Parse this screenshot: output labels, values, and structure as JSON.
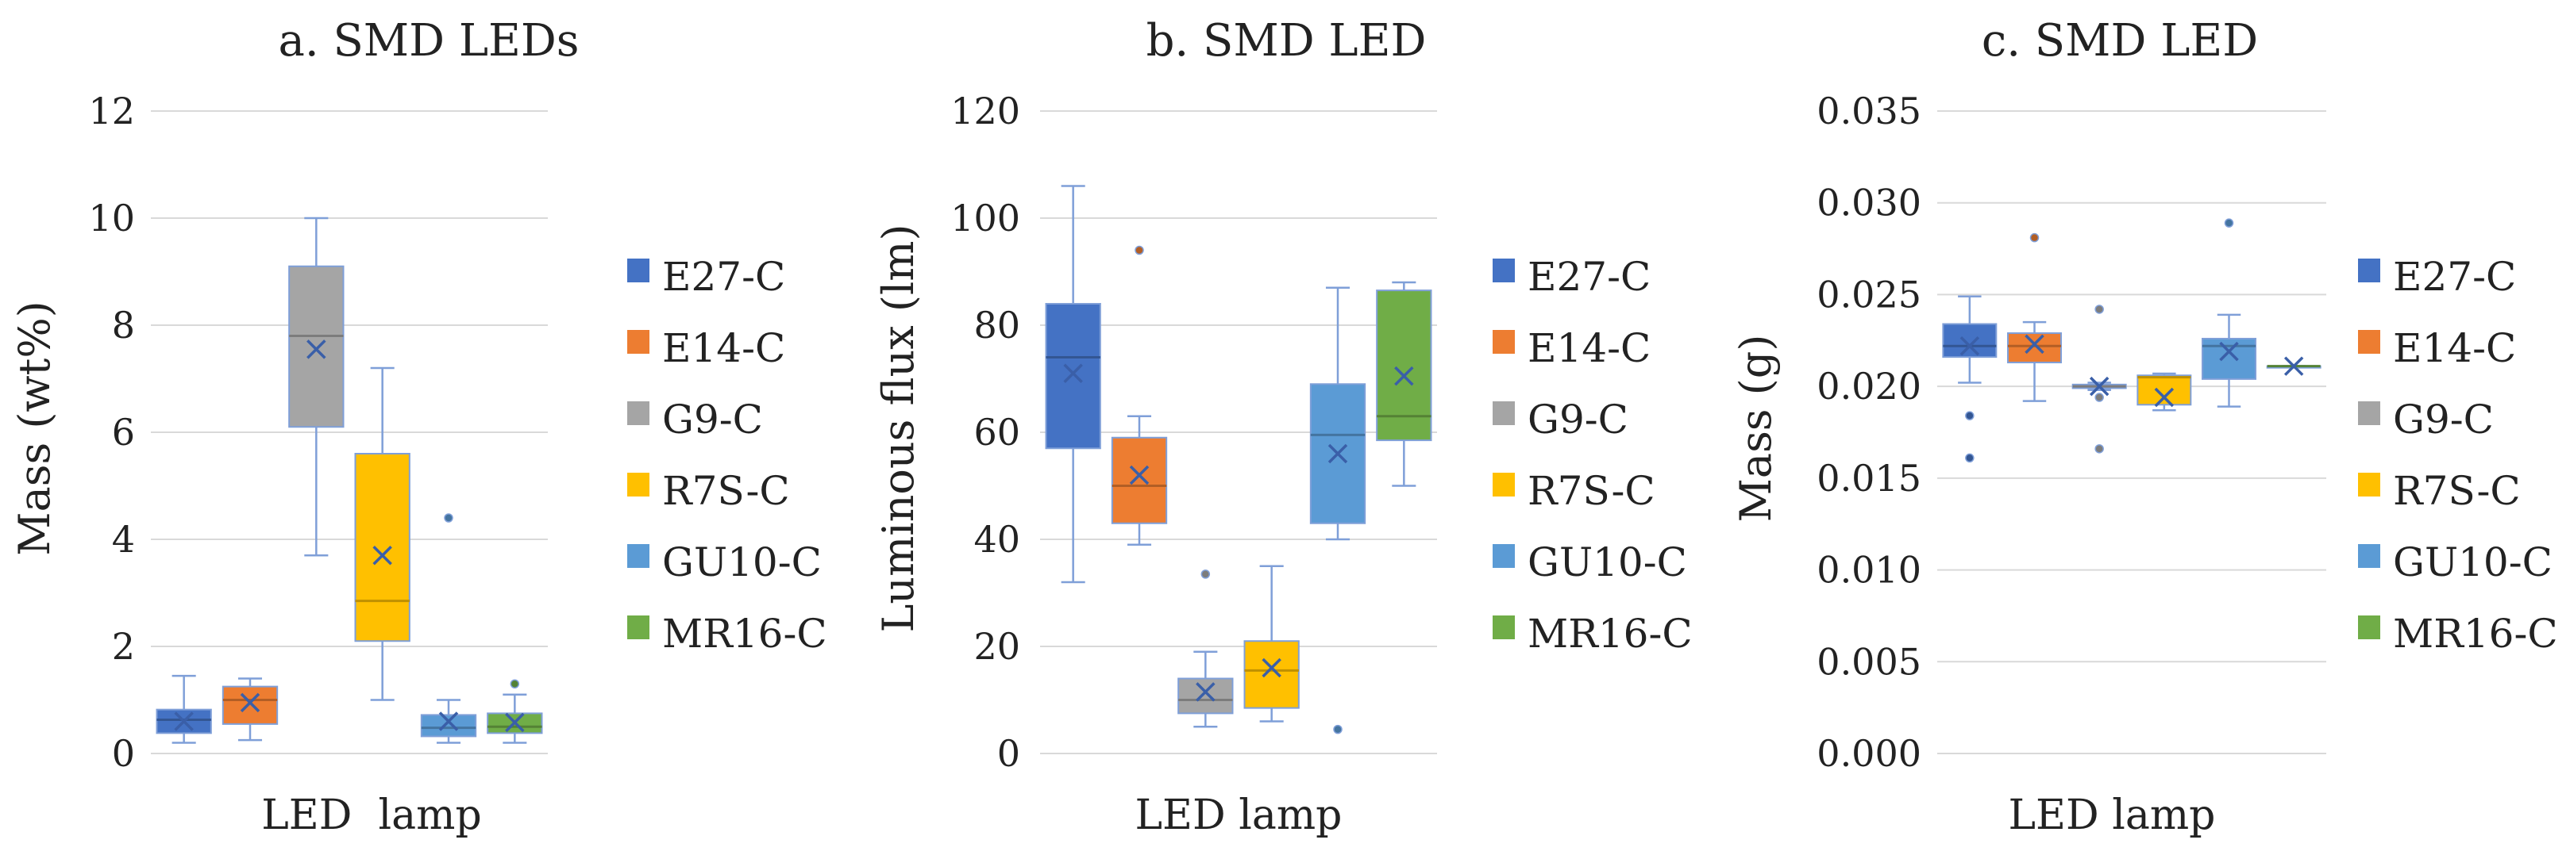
{
  "colors": {
    "E27-C": "#4472c4",
    "E14-C": "#ed7d31",
    "G9-C": "#a5a5a5",
    "R7S-C": "#ffc000",
    "GU10-C": "#5b9bd5",
    "MR16-C": "#70ad47",
    "whisker": "#7f9fd8",
    "mean_marker": "#3a5fa8",
    "grid": "#d9d9d9"
  },
  "chart_data": [
    {
      "type": "box",
      "title": "a. SMD LEDs",
      "xlabel": "LED  lamp",
      "ylabel": "Mass (wt%)",
      "ylim": [
        0,
        12
      ],
      "yticks": [
        "0",
        "2",
        "4",
        "6",
        "8",
        "10",
        "12"
      ],
      "legend": [
        "E27-C",
        "E14-C",
        "G9-C",
        "R7S-C",
        "GU10-C",
        "MR16-C"
      ],
      "boxes": [
        {
          "name": "E27-C",
          "min": 0.2,
          "q1": 0.38,
          "median": 0.63,
          "q3": 0.82,
          "max": 1.45,
          "mean": 0.6,
          "outliers": []
        },
        {
          "name": "E14-C",
          "min": 0.25,
          "q1": 0.55,
          "median": 1.0,
          "q3": 1.25,
          "max": 1.4,
          "mean": 0.95,
          "outliers": []
        },
        {
          "name": "G9-C",
          "min": 3.7,
          "q1": 6.1,
          "median": 7.8,
          "q3": 9.1,
          "max": 10.0,
          "mean": 7.55,
          "outliers": []
        },
        {
          "name": "R7S-C",
          "min": 1.0,
          "q1": 2.1,
          "median": 2.85,
          "q3": 5.6,
          "max": 7.2,
          "mean": 3.7,
          "outliers": []
        },
        {
          "name": "GU10-C",
          "min": 0.2,
          "q1": 0.32,
          "median": 0.48,
          "q3": 0.72,
          "max": 1.0,
          "mean": 0.6,
          "outliers": [
            4.4
          ]
        },
        {
          "name": "MR16-C",
          "min": 0.2,
          "q1": 0.38,
          "median": 0.5,
          "q3": 0.75,
          "max": 1.1,
          "mean": 0.58,
          "outliers": [
            1.3
          ]
        }
      ]
    },
    {
      "type": "box",
      "title": "b. SMD LED",
      "xlabel": "LED lamp",
      "ylabel": "Luminous flux (lm)",
      "ylim": [
        0,
        120
      ],
      "yticks": [
        "0",
        "20",
        "40",
        "60",
        "80",
        "100",
        "120"
      ],
      "legend": [
        "E27-C",
        "E14-C",
        "G9-C",
        "R7S-C",
        "GU10-C",
        "MR16-C"
      ],
      "boxes": [
        {
          "name": "E27-C",
          "min": 32,
          "q1": 57,
          "median": 74,
          "q3": 84,
          "max": 106,
          "mean": 71,
          "outliers": []
        },
        {
          "name": "E14-C",
          "min": 39,
          "q1": 43,
          "median": 50,
          "q3": 59,
          "max": 63,
          "mean": 52,
          "outliers": [
            94
          ]
        },
        {
          "name": "G9-C",
          "min": 5,
          "q1": 7.5,
          "median": 10,
          "q3": 14,
          "max": 19,
          "mean": 11.5,
          "outliers": [
            33.5
          ]
        },
        {
          "name": "R7S-C",
          "min": 6,
          "q1": 8.5,
          "median": 15.5,
          "q3": 21,
          "max": 35,
          "mean": 16,
          "outliers": []
        },
        {
          "name": "GU10-C",
          "min": 40,
          "q1": 43,
          "median": 59.5,
          "q3": 69,
          "max": 87,
          "mean": 56,
          "outliers": [
            4.5
          ]
        },
        {
          "name": "MR16-C",
          "min": 50,
          "q1": 58.5,
          "median": 63,
          "q3": 86.5,
          "max": 88,
          "mean": 70.5,
          "outliers": []
        }
      ]
    },
    {
      "type": "box",
      "title": "c. SMD LED",
      "xlabel": "LED lamp",
      "ylabel": "Mass (g)",
      "ylim": [
        0,
        0.035
      ],
      "yticks": [
        "0.000",
        "0.005",
        "0.010",
        "0.015",
        "0.020",
        "0.025",
        "0.030",
        "0.035"
      ],
      "legend": [
        "E27-C",
        "E14-C",
        "G9-C",
        "R7S-C",
        "GU10-C",
        "MR16-C"
      ],
      "boxes": [
        {
          "name": "E27-C",
          "min": 0.0202,
          "q1": 0.0216,
          "median": 0.0222,
          "q3": 0.0234,
          "max": 0.0249,
          "mean": 0.0222,
          "outliers": [
            0.0184,
            0.0161
          ]
        },
        {
          "name": "E14-C",
          "min": 0.0192,
          "q1": 0.0213,
          "median": 0.0222,
          "q3": 0.0229,
          "max": 0.0235,
          "mean": 0.0223,
          "outliers": [
            0.0281
          ]
        },
        {
          "name": "G9-C",
          "min": 0.0198,
          "q1": 0.0199,
          "median": 0.02,
          "q3": 0.0201,
          "max": 0.0202,
          "mean": 0.02,
          "outliers": [
            0.0242,
            0.0194,
            0.0166
          ]
        },
        {
          "name": "R7S-C",
          "min": 0.0187,
          "q1": 0.019,
          "median": 0.0205,
          "q3": 0.0206,
          "max": 0.0207,
          "mean": 0.0194,
          "outliers": []
        },
        {
          "name": "GU10-C",
          "min": 0.0189,
          "q1": 0.0204,
          "median": 0.0222,
          "q3": 0.0226,
          "max": 0.0239,
          "mean": 0.0219,
          "outliers": [
            0.0289
          ]
        },
        {
          "name": "MR16-C",
          "min": 0.0211,
          "q1": 0.0211,
          "median": 0.0211,
          "q3": 0.0211,
          "max": 0.0211,
          "mean": 0.0211,
          "outliers": []
        }
      ]
    }
  ]
}
